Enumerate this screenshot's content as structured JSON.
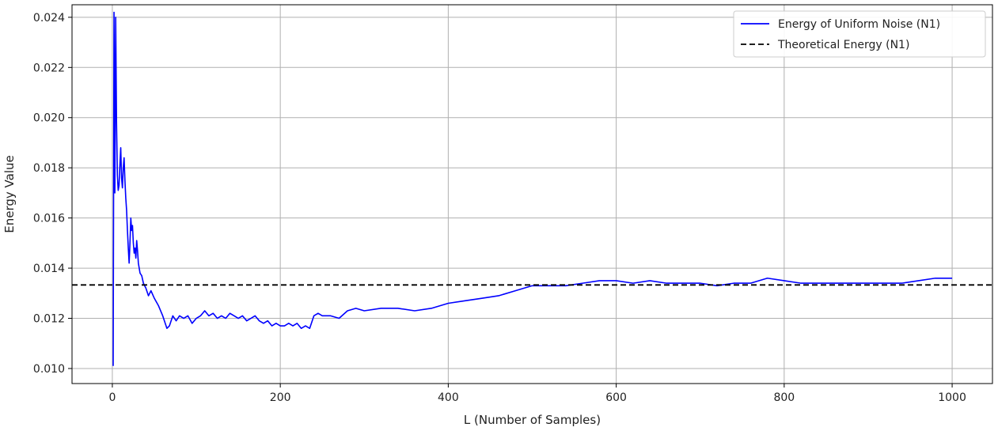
{
  "chart_data": {
    "type": "line",
    "title": "",
    "xlabel": "L (Number of Samples)",
    "ylabel": "Energy Value",
    "xlim": [
      -48,
      1048
    ],
    "ylim": [
      0.0094,
      0.0245
    ],
    "x_ticks": [
      0,
      200,
      400,
      600,
      800,
      1000
    ],
    "y_ticks": [
      0.01,
      0.012,
      0.014,
      0.016,
      0.018,
      0.02,
      0.022,
      0.024
    ],
    "x_tick_labels": [
      "0",
      "200",
      "400",
      "600",
      "800",
      "1000"
    ],
    "y_tick_labels": [
      "0.010",
      "0.012",
      "0.014",
      "0.016",
      "0.018",
      "0.020",
      "0.022",
      "0.024"
    ],
    "grid": true,
    "legend_position": "top-right",
    "series": [
      {
        "name": "Energy of Uniform Noise (N1)",
        "color": "#0000ff",
        "style": "solid",
        "x": [
          1,
          2,
          3,
          4,
          5,
          6,
          7,
          8,
          9,
          10,
          11,
          12,
          13,
          14,
          15,
          16,
          17,
          18,
          19,
          20,
          21,
          22,
          23,
          24,
          25,
          26,
          27,
          28,
          29,
          30,
          31,
          33,
          35,
          37,
          40,
          43,
          46,
          50,
          55,
          60,
          65,
          68,
          72,
          76,
          80,
          85,
          90,
          95,
          100,
          105,
          110,
          115,
          120,
          125,
          130,
          135,
          140,
          145,
          150,
          155,
          160,
          165,
          170,
          175,
          180,
          185,
          190,
          195,
          200,
          205,
          210,
          215,
          220,
          225,
          230,
          235,
          240,
          245,
          250,
          260,
          270,
          280,
          290,
          300,
          320,
          340,
          360,
          380,
          400,
          420,
          440,
          460,
          480,
          500,
          520,
          540,
          560,
          580,
          600,
          620,
          640,
          660,
          680,
          700,
          720,
          740,
          760,
          780,
          800,
          820,
          840,
          860,
          880,
          900,
          920,
          940,
          960,
          980,
          1000
        ],
        "y": [
          0.0101,
          0.0242,
          0.017,
          0.024,
          0.0198,
          0.0177,
          0.0171,
          0.0173,
          0.0181,
          0.0188,
          0.0176,
          0.0172,
          0.018,
          0.0184,
          0.0175,
          0.0168,
          0.0163,
          0.0155,
          0.0148,
          0.0142,
          0.015,
          0.016,
          0.0155,
          0.0157,
          0.015,
          0.0146,
          0.0148,
          0.0144,
          0.0151,
          0.0147,
          0.0142,
          0.0138,
          0.0137,
          0.0134,
          0.0132,
          0.0129,
          0.0131,
          0.0128,
          0.0125,
          0.0121,
          0.0116,
          0.0117,
          0.0121,
          0.0119,
          0.0121,
          0.012,
          0.0121,
          0.0118,
          0.012,
          0.0121,
          0.0123,
          0.0121,
          0.0122,
          0.012,
          0.0121,
          0.012,
          0.0122,
          0.0121,
          0.012,
          0.0121,
          0.0119,
          0.012,
          0.0121,
          0.0119,
          0.0118,
          0.0119,
          0.0117,
          0.0118,
          0.0117,
          0.0117,
          0.0118,
          0.0117,
          0.0118,
          0.0116,
          0.0117,
          0.0116,
          0.0121,
          0.0122,
          0.0121,
          0.0121,
          0.012,
          0.0123,
          0.0124,
          0.0123,
          0.0124,
          0.0124,
          0.0123,
          0.0124,
          0.0126,
          0.0127,
          0.0128,
          0.0129,
          0.0131,
          0.0133,
          0.0133,
          0.0133,
          0.0134,
          0.0135,
          0.0135,
          0.0134,
          0.0135,
          0.0134,
          0.0134,
          0.0134,
          0.0133,
          0.0134,
          0.0134,
          0.0136,
          0.0135,
          0.0134,
          0.0134,
          0.0134,
          0.0134,
          0.0134,
          0.0134,
          0.0134,
          0.0135,
          0.0136,
          0.0136
        ]
      },
      {
        "name": "Theoretical Energy (N1)",
        "color": "#000000",
        "style": "dashed",
        "x": [
          -48,
          1048
        ],
        "y": [
          0.01333,
          0.01333
        ]
      }
    ]
  }
}
